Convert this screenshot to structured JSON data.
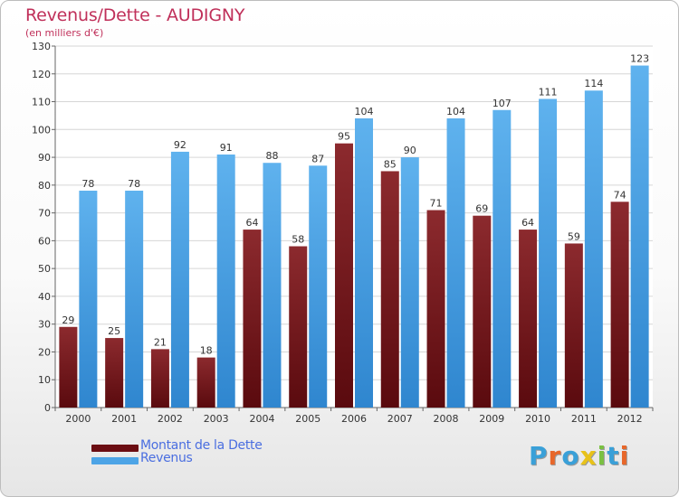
{
  "title": "Revenus/Dette - AUDIGNY",
  "subtitle": "(en milliers d'€)",
  "chart_data": {
    "type": "bar",
    "categories": [
      "2000",
      "2001",
      "2002",
      "2003",
      "2004",
      "2005",
      "2006",
      "2007",
      "2008",
      "2009",
      "2010",
      "2011",
      "2012"
    ],
    "series": [
      {
        "name": "Montant de la Dette",
        "color": "#7a1a1f",
        "values": [
          29,
          25,
          21,
          18,
          64,
          58,
          95,
          85,
          71,
          69,
          64,
          59,
          74
        ]
      },
      {
        "name": "Revenus",
        "color": "#4da4e6",
        "values": [
          78,
          78,
          92,
          91,
          88,
          87,
          104,
          90,
          104,
          107,
          111,
          114,
          123
        ]
      }
    ],
    "ylim": [
      0,
      130
    ],
    "yticks": [
      0,
      10,
      20,
      30,
      40,
      50,
      60,
      70,
      80,
      90,
      100,
      110,
      120,
      130
    ],
    "grid": true,
    "legend_position": "bottom-left"
  },
  "logo": {
    "text": "Proxiti",
    "colors": [
      "#3aa0d8",
      "#e8672a",
      "#3aa0d8",
      "#e8c21a",
      "#7ac142",
      "#3aa0d8",
      "#e8672a"
    ]
  }
}
